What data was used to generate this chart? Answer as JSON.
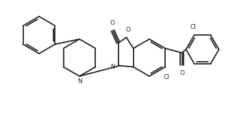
{
  "bg_color": "#ffffff",
  "line_color": "#222222",
  "line_width": 1.3,
  "figsize": [
    3.46,
    1.69
  ],
  "dpi": 100,
  "xlim": [
    0,
    346
  ],
  "ylim": [
    0,
    169
  ]
}
